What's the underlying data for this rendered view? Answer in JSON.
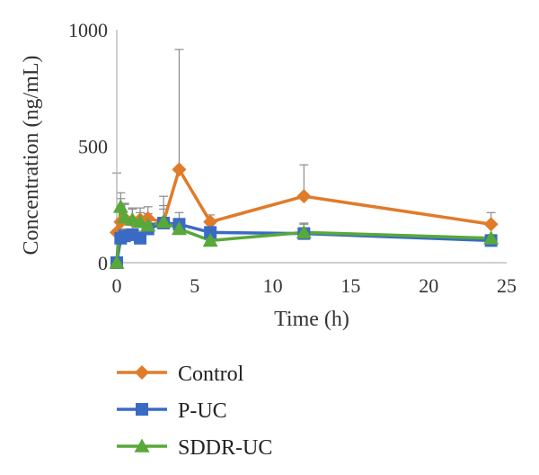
{
  "chart_data": {
    "type": "line",
    "xlabel": "Time (h)",
    "ylabel": "Concentration (ng/mL)",
    "xlim": [
      0,
      25
    ],
    "ylim": [
      0,
      1000
    ],
    "x_ticks": [
      0,
      5,
      10,
      15,
      20,
      25
    ],
    "y_ticks": [
      0,
      500,
      1000
    ],
    "grid": false,
    "legend_position": "bottom",
    "series": [
      {
        "name": "Control",
        "color": "#e07b2a",
        "marker": "diamond",
        "x": [
          0,
          0.25,
          0.5,
          1,
          1.5,
          2,
          3,
          4,
          6,
          12,
          24
        ],
        "y": [
          130,
          175,
          190,
          180,
          185,
          190,
          175,
          400,
          175,
          285,
          165
        ],
        "error": [
          255,
          100,
          60,
          50,
          50,
          50,
          110,
          515,
          30,
          135,
          50
        ]
      },
      {
        "name": "P-UC",
        "color": "#3a6bc4",
        "marker": "square",
        "x": [
          0,
          0.25,
          0.5,
          1,
          1.5,
          2,
          3,
          4,
          6,
          12,
          24
        ],
        "y": [
          0,
          105,
          115,
          120,
          105,
          145,
          170,
          165,
          130,
          125,
          95
        ],
        "error": [
          0,
          30,
          30,
          40,
          30,
          40,
          60,
          50,
          20,
          45,
          20
        ]
      },
      {
        "name": "SDDR-UC",
        "color": "#59a83a",
        "marker": "triangle",
        "x": [
          0,
          0.25,
          0.5,
          1,
          1.5,
          2,
          3,
          4,
          6,
          12,
          24
        ],
        "y": [
          0,
          240,
          195,
          185,
          175,
          160,
          175,
          145,
          95,
          130,
          105
        ],
        "error": [
          0,
          60,
          60,
          50,
          40,
          50,
          70,
          40,
          25,
          35,
          15
        ]
      }
    ]
  }
}
